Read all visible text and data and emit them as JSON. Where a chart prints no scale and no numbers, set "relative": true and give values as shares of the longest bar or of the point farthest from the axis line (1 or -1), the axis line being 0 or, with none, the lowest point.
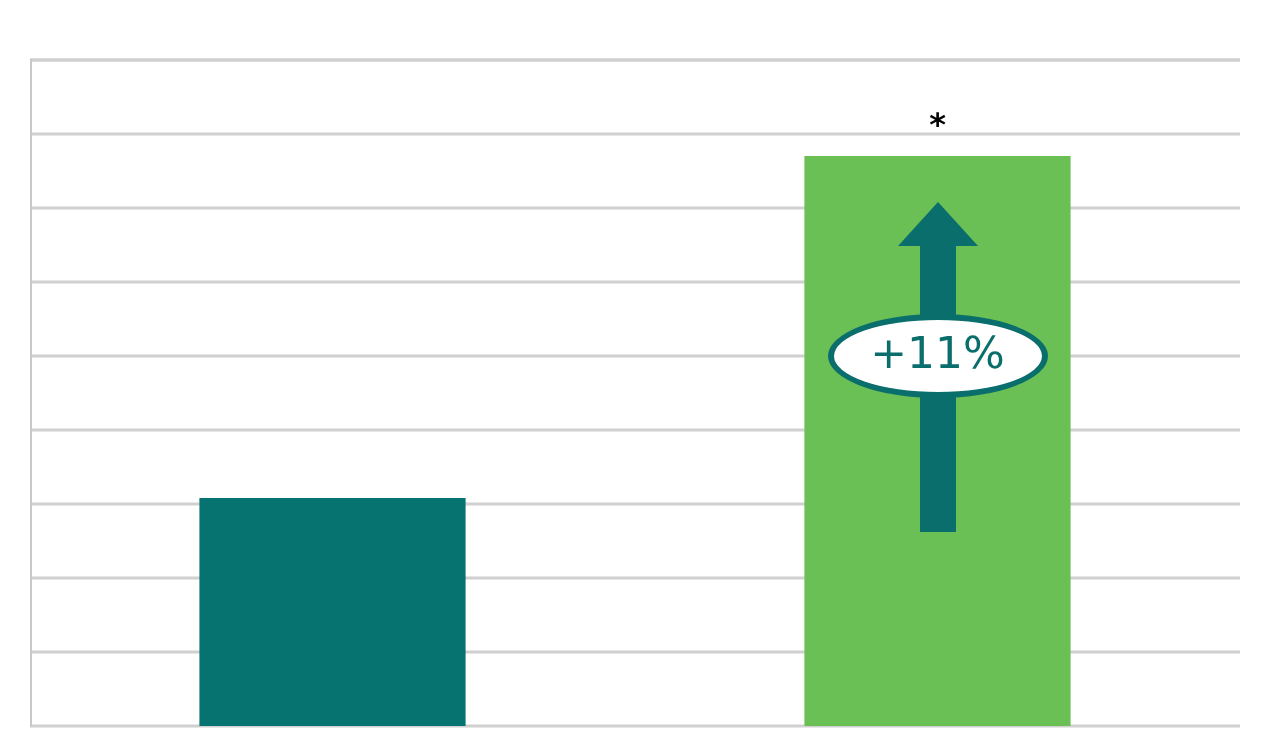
{
  "chart_data": {
    "type": "bar",
    "relative": true,
    "categories": [
      null,
      null
    ],
    "values": [
      0.4,
      1
    ],
    "colors": [
      "#077370",
      "#6abf55"
    ],
    "annotations": [
      "*",
      "+11%"
    ],
    "grid": "y"
  }
}
